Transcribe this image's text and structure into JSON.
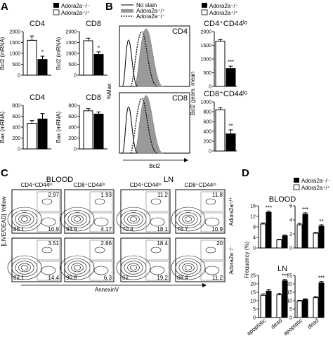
{
  "panel_labels": {
    "a": "A",
    "b": "B",
    "c": "C",
    "d": "D"
  },
  "legend": {
    "ko": "Adora2a⁻/⁻",
    "wt": "Adora2a⁺/⁺",
    "no_stain": "No stain"
  },
  "chart_data": [
    {
      "type": "bar",
      "panel": "A",
      "title": "CD4",
      "ylabel": "Bcl2 (mRNA)",
      "ylim": [
        0,
        2000
      ],
      "yticks": [
        "0",
        "500",
        "1000",
        "1500",
        "2000"
      ],
      "series": [
        {
          "name": "Adora2a⁺/⁺",
          "values": [
            1600
          ],
          "err": [
            200
          ]
        },
        {
          "name": "Adora2a⁻/⁻",
          "values": [
            720
          ],
          "err": [
            150
          ]
        }
      ],
      "significance": "*"
    },
    {
      "type": "bar",
      "panel": "A",
      "title": "CD8",
      "ylabel": "Bcl2 (mRNA)",
      "ylim": [
        0,
        2000
      ],
      "yticks": [
        "0",
        "500",
        "1000",
        "1500",
        "2000"
      ],
      "series": [
        {
          "name": "Adora2a⁺/⁺",
          "values": [
            1580
          ],
          "err": [
            120
          ]
        },
        {
          "name": "Adora2a⁻/⁻",
          "values": [
            950
          ],
          "err": [
            120
          ]
        }
      ],
      "significance": "*"
    },
    {
      "type": "bar",
      "panel": "A",
      "title": "CD4",
      "ylabel": "Bax (mRNA)",
      "ylim": [
        0,
        800
      ],
      "yticks": [
        "0",
        "200",
        "400",
        "600",
        "800"
      ],
      "series": [
        {
          "name": "Adora2a⁺/⁺",
          "values": [
            470
          ],
          "err": [
            50
          ]
        },
        {
          "name": "Adora2a⁻/⁻",
          "values": [
            550
          ],
          "err": [
            100
          ]
        }
      ]
    },
    {
      "type": "bar",
      "panel": "A",
      "title": "CD8",
      "ylabel": "Bax (mRNA)",
      "ylim": [
        0,
        800
      ],
      "yticks": [
        "0",
        "200",
        "400",
        "600",
        "800"
      ],
      "series": [
        {
          "name": "Adora2a⁺/⁺",
          "values": [
            700
          ],
          "err": [
            40
          ]
        },
        {
          "name": "Adora2a⁻/⁻",
          "values": [
            640
          ],
          "err": [
            40
          ]
        }
      ]
    },
    {
      "type": "line",
      "panel": "B",
      "subtype": "histogram",
      "titles": [
        "CD4",
        "CD8"
      ],
      "ylabel": "%Max",
      "xlabel": "Bcl2"
    },
    {
      "type": "bar",
      "panel": "B",
      "title": "CD4⁺CD44ˡᵒ",
      "ylabel": "Bcl2 geom. mean",
      "ylim": [
        0,
        2000
      ],
      "yticks": [
        "0",
        "500",
        "1000",
        "1500",
        "2000"
      ],
      "series": [
        {
          "name": "Adora2a⁺/⁺",
          "values": [
            1650
          ],
          "err": [
            60
          ]
        },
        {
          "name": "Adora2a⁻/⁻",
          "values": [
            650
          ],
          "err": [
            90
          ]
        }
      ],
      "significance": "***"
    },
    {
      "type": "bar",
      "panel": "B",
      "title": "CD8⁺CD44ˡᵒ",
      "ylabel": "Bcl2 geom. mean",
      "ylim": [
        0,
        1000
      ],
      "yticks": [
        "0",
        "200",
        "400",
        "600",
        "800",
        "1000"
      ],
      "series": [
        {
          "name": "Adora2a⁺/⁺",
          "values": [
            840
          ],
          "err": [
            40
          ]
        },
        {
          "name": "Adora2a⁻/⁻",
          "values": [
            350
          ],
          "err": [
            80
          ]
        }
      ],
      "significance": "**"
    },
    {
      "type": "scatter",
      "panel": "C",
      "subtype": "flow-contour",
      "group_titles": [
        "BLOOD",
        "LN"
      ],
      "column_titles": [
        "CD4⁺CD44ˡᵒ",
        "CD8⁺CD44ˡᵒ",
        "CD4⁺CD44ˡᵒ",
        "CD8⁺CD44ˡᵒ"
      ],
      "row_labels": [
        "Adora2a⁺/⁺",
        "Adora2a⁻/⁻"
      ],
      "ylabel": "[LIVE/DEAD] Yellow",
      "xlabel": "AnnexinV",
      "quadrants": [
        {
          "row": 0,
          "col": 0,
          "ul": "",
          "ur": "2.97",
          "ll": "86.1",
          "lr": "10.9"
        },
        {
          "row": 0,
          "col": 1,
          "ul": "",
          "ur": "1.93",
          "ll": "93.9",
          "lr": "4.17"
        },
        {
          "row": 0,
          "col": 2,
          "ul": "",
          "ur": "11.2",
          "ll": "70.4",
          "lr": "18.1"
        },
        {
          "row": 0,
          "col": 3,
          "ul": "",
          "ur": "11.8",
          "ll": "76.7",
          "lr": "10.9"
        },
        {
          "row": 1,
          "col": 0,
          "ul": "",
          "ur": "3.51",
          "ll": "82.1",
          "lr": "14.4"
        },
        {
          "row": 1,
          "col": 1,
          "ul": "",
          "ur": "2.86",
          "ll": "90.8",
          "lr": "6.3"
        },
        {
          "row": 1,
          "col": 2,
          "ul": "",
          "ur": "18.4",
          "ll": "62",
          "lr": "19.2"
        },
        {
          "row": 1,
          "col": 3,
          "ul": "",
          "ur": "20",
          "ll": "68.4",
          "lr": "11.2"
        }
      ]
    },
    {
      "type": "bar",
      "panel": "D",
      "group": "BLOOD",
      "cell": "CD4⁺CD44ˡᵒ",
      "ylabel": "Frequency (%)",
      "ylim": [
        0,
        16
      ],
      "yticks": [
        "0",
        "4",
        "8",
        "12",
        "16"
      ],
      "categories": [
        "apoptotic",
        "dead"
      ],
      "series": [
        {
          "name": "Adora2a⁺/⁺",
          "values": [
            9.1,
            3.1
          ],
          "err": [
            0.4,
            0.2
          ]
        },
        {
          "name": "Adora2a⁻/⁻",
          "values": [
            13.5,
            4.6
          ],
          "err": [
            0.5,
            0.3
          ]
        }
      ],
      "significance": [
        "***",
        ""
      ]
    },
    {
      "type": "bar",
      "panel": "D",
      "group": "BLOOD",
      "cell": "CD8⁺CD44ˡᵒ",
      "ylabel": "",
      "ylim": [
        0,
        6
      ],
      "yticks": [
        "0",
        "2",
        "4",
        "6"
      ],
      "categories": [
        "apoptotic",
        "dead"
      ],
      "series": [
        {
          "name": "Adora2a⁺/⁺",
          "values": [
            3.3,
            2.1
          ],
          "err": [
            0.2,
            0.1
          ]
        },
        {
          "name": "Adora2a⁻/⁻",
          "values": [
            4.8,
            3.1
          ],
          "err": [
            0.2,
            0.2
          ]
        }
      ],
      "significance": [
        "***",
        "**"
      ]
    },
    {
      "type": "bar",
      "panel": "D",
      "group": "LN",
      "cell": "CD4⁺CD44ˡᵒ",
      "ylabel": "",
      "ylim": [
        0,
        25
      ],
      "yticks": [
        "0",
        "5",
        "10",
        "15",
        "20",
        "25"
      ],
      "categories": [
        "apoptotic",
        "dead"
      ],
      "series": [
        {
          "name": "Adora2a⁺/⁺",
          "values": [
            13.2,
            13.5
          ],
          "err": [
            0.8,
            0.8
          ]
        },
        {
          "name": "Adora2a⁻/⁻",
          "values": [
            15.7,
            21.8
          ],
          "err": [
            0.8,
            0.9
          ]
        }
      ],
      "significance": [
        "",
        "***"
      ]
    },
    {
      "type": "bar",
      "panel": "D",
      "group": "LN",
      "cell": "CD8⁺CD44ˡᵒ",
      "ylabel": "",
      "ylim": [
        0,
        25
      ],
      "yticks": [
        "0",
        "5",
        "10",
        "15",
        "20",
        "25"
      ],
      "categories": [
        "apoptotic",
        "dead"
      ],
      "series": [
        {
          "name": "Adora2a⁺/⁺",
          "values": [
            9.8,
            11.8
          ],
          "err": [
            0.4,
            0.5
          ]
        },
        {
          "name": "Adora2a⁻/⁻",
          "values": [
            10.6,
            20.5
          ],
          "err": [
            0.5,
            0.9
          ]
        }
      ],
      "significance": [
        "",
        "***"
      ]
    }
  ]
}
